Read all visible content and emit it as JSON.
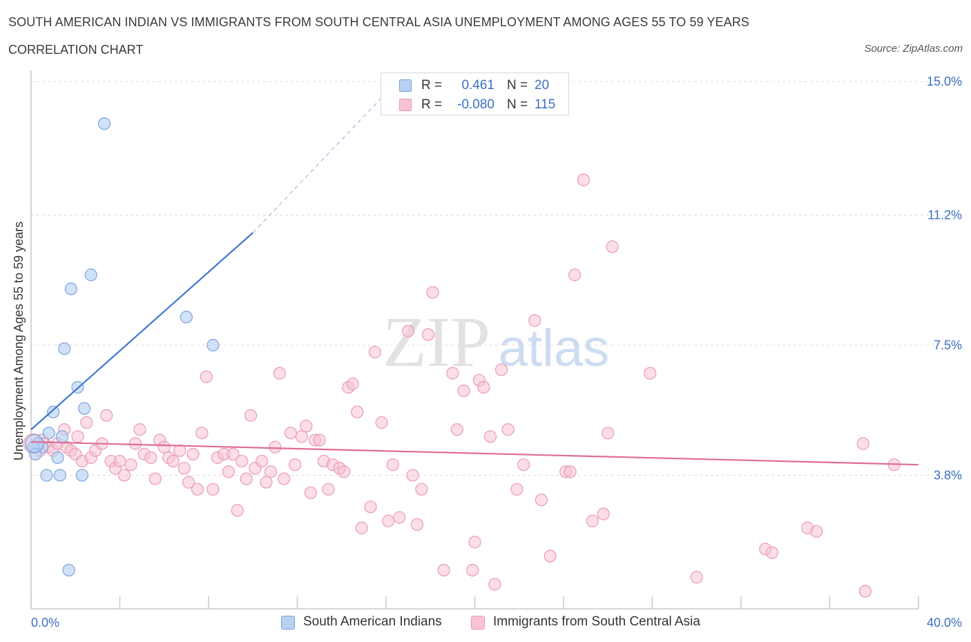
{
  "title": "SOUTH AMERICAN INDIAN VS IMMIGRANTS FROM SOUTH CENTRAL ASIA UNEMPLOYMENT AMONG AGES 55 TO 59 YEARS",
  "subtitle": "CORRELATION CHART",
  "source": "Source: ZipAtlas.com",
  "watermark": {
    "zip": "ZIP",
    "atlas": "atlas"
  },
  "colors": {
    "blue_fill": "#b8d1f3",
    "blue_stroke": "#7aa3dd",
    "blue_line": "#3a76d0",
    "pink_fill": "#f7c3d3",
    "pink_stroke": "#e99ab3",
    "pink_line": "#e06b98",
    "axis_label": "#3a6fc4",
    "grid": "#dcdcdc"
  },
  "legend": {
    "rows": [
      {
        "r_label": "R =",
        "r_value": "0.461",
        "n_label": "N =",
        "n_value": "20"
      },
      {
        "r_label": "R =",
        "r_value": "-0.080",
        "n_label": "N =",
        "n_value": "115"
      }
    ]
  },
  "bottom_legend": [
    {
      "label": "South American Indians"
    },
    {
      "label": "Immigrants from South Central Asia"
    }
  ],
  "chart_data": {
    "type": "scatter",
    "title": "SOUTH AMERICAN INDIAN VS IMMIGRANTS FROM SOUTH CENTRAL ASIA UNEMPLOYMENT AMONG AGES 55 TO 59 YEARS",
    "xlabel": "",
    "ylabel": "Unemployment Among Ages 55 to 59 years",
    "xlim": [
      0,
      40
    ],
    "ylim": [
      0,
      15
    ],
    "x_tick_labels": [
      "0.0%",
      "40.0%"
    ],
    "y_ticks": [
      3.8,
      7.5,
      11.2,
      15.0
    ],
    "y_tick_labels": [
      "3.8%",
      "7.5%",
      "11.2%",
      "15.0%"
    ],
    "grid": true,
    "series": [
      {
        "name": "South American Indians",
        "R": 0.461,
        "N": 20,
        "trend": {
          "x": [
            0.0,
            10.0
          ],
          "y": [
            5.1,
            10.7
          ],
          "dashed_to": [
            16.2,
            14.8
          ]
        },
        "points": [
          [
            3.3,
            13.8
          ],
          [
            2.7,
            9.5
          ],
          [
            1.8,
            9.1
          ],
          [
            7.0,
            8.3
          ],
          [
            1.5,
            7.4
          ],
          [
            8.2,
            7.5
          ],
          [
            2.1,
            6.3
          ],
          [
            2.4,
            5.7
          ],
          [
            1.0,
            5.6
          ],
          [
            0.8,
            5.0
          ],
          [
            1.4,
            4.9
          ],
          [
            0.3,
            4.7
          ],
          [
            0.5,
            4.6
          ],
          [
            0.1,
            4.6
          ],
          [
            0.2,
            4.4
          ],
          [
            1.2,
            4.3
          ],
          [
            0.7,
            3.8
          ],
          [
            1.3,
            3.8
          ],
          [
            2.3,
            3.8
          ],
          [
            1.7,
            1.1
          ]
        ]
      },
      {
        "name": "Immigrants from South Central Asia",
        "R": -0.08,
        "N": 115,
        "trend": {
          "x": [
            0.0,
            40.0
          ],
          "y": [
            4.75,
            4.1
          ]
        },
        "points": [
          [
            0.2,
            4.6
          ],
          [
            0.4,
            4.5
          ],
          [
            0.5,
            4.8
          ],
          [
            0.6,
            4.7
          ],
          [
            0.8,
            4.6
          ],
          [
            1.0,
            4.5
          ],
          [
            1.2,
            4.7
          ],
          [
            1.5,
            5.1
          ],
          [
            1.6,
            4.6
          ],
          [
            1.8,
            4.5
          ],
          [
            2.0,
            4.4
          ],
          [
            2.1,
            4.9
          ],
          [
            2.3,
            4.2
          ],
          [
            2.5,
            5.3
          ],
          [
            2.7,
            4.3
          ],
          [
            2.9,
            4.5
          ],
          [
            3.2,
            4.7
          ],
          [
            3.4,
            5.5
          ],
          [
            3.6,
            4.2
          ],
          [
            3.8,
            4.0
          ],
          [
            4.0,
            4.2
          ],
          [
            4.2,
            3.8
          ],
          [
            4.5,
            4.1
          ],
          [
            4.7,
            4.7
          ],
          [
            4.9,
            5.1
          ],
          [
            5.1,
            4.4
          ],
          [
            5.4,
            4.3
          ],
          [
            5.6,
            3.7
          ],
          [
            5.8,
            4.8
          ],
          [
            6.0,
            4.6
          ],
          [
            6.2,
            4.3
          ],
          [
            6.4,
            4.2
          ],
          [
            6.7,
            4.5
          ],
          [
            6.9,
            4.0
          ],
          [
            7.1,
            3.6
          ],
          [
            7.3,
            4.4
          ],
          [
            7.5,
            3.4
          ],
          [
            7.7,
            5.0
          ],
          [
            7.9,
            6.6
          ],
          [
            8.2,
            3.4
          ],
          [
            8.4,
            4.3
          ],
          [
            8.7,
            4.4
          ],
          [
            8.9,
            3.9
          ],
          [
            9.1,
            4.4
          ],
          [
            9.3,
            2.8
          ],
          [
            9.5,
            4.2
          ],
          [
            9.7,
            3.7
          ],
          [
            9.9,
            5.5
          ],
          [
            10.1,
            4.0
          ],
          [
            10.4,
            4.2
          ],
          [
            10.6,
            3.6
          ],
          [
            10.8,
            3.9
          ],
          [
            11.0,
            4.6
          ],
          [
            11.2,
            6.7
          ],
          [
            11.4,
            3.7
          ],
          [
            11.7,
            5.0
          ],
          [
            11.9,
            4.1
          ],
          [
            12.2,
            4.9
          ],
          [
            12.4,
            5.2
          ],
          [
            12.6,
            3.3
          ],
          [
            12.8,
            4.8
          ],
          [
            13.0,
            4.8
          ],
          [
            13.2,
            4.2
          ],
          [
            13.4,
            3.4
          ],
          [
            13.6,
            4.1
          ],
          [
            13.9,
            4.0
          ],
          [
            14.1,
            3.9
          ],
          [
            14.3,
            6.3
          ],
          [
            14.5,
            6.4
          ],
          [
            14.7,
            5.6
          ],
          [
            14.9,
            2.3
          ],
          [
            15.3,
            2.9
          ],
          [
            15.5,
            7.3
          ],
          [
            15.8,
            5.3
          ],
          [
            16.1,
            2.5
          ],
          [
            16.3,
            4.1
          ],
          [
            16.6,
            2.6
          ],
          [
            17.0,
            7.9
          ],
          [
            17.2,
            3.8
          ],
          [
            17.4,
            2.4
          ],
          [
            17.6,
            3.4
          ],
          [
            17.9,
            7.8
          ],
          [
            18.1,
            9.0
          ],
          [
            18.6,
            1.1
          ],
          [
            19.0,
            6.7
          ],
          [
            19.2,
            5.1
          ],
          [
            19.5,
            6.2
          ],
          [
            19.9,
            1.1
          ],
          [
            20.0,
            1.9
          ],
          [
            20.2,
            6.5
          ],
          [
            20.4,
            6.3
          ],
          [
            20.7,
            4.9
          ],
          [
            20.9,
            0.7
          ],
          [
            21.2,
            6.8
          ],
          [
            21.5,
            5.1
          ],
          [
            21.9,
            3.4
          ],
          [
            22.2,
            4.1
          ],
          [
            22.7,
            8.2
          ],
          [
            23.0,
            3.1
          ],
          [
            23.4,
            1.5
          ],
          [
            24.1,
            3.9
          ],
          [
            24.3,
            3.9
          ],
          [
            24.9,
            12.2
          ],
          [
            24.5,
            9.5
          ],
          [
            25.3,
            2.5
          ],
          [
            25.8,
            2.7
          ],
          [
            26.0,
            5.0
          ],
          [
            26.2,
            10.3
          ],
          [
            27.9,
            6.7
          ],
          [
            30.0,
            0.9
          ],
          [
            33.1,
            1.7
          ],
          [
            33.4,
            1.6
          ],
          [
            35.0,
            2.3
          ],
          [
            35.4,
            2.2
          ],
          [
            37.5,
            4.7
          ],
          [
            37.6,
            0.5
          ],
          [
            38.9,
            4.1
          ]
        ]
      }
    ]
  }
}
